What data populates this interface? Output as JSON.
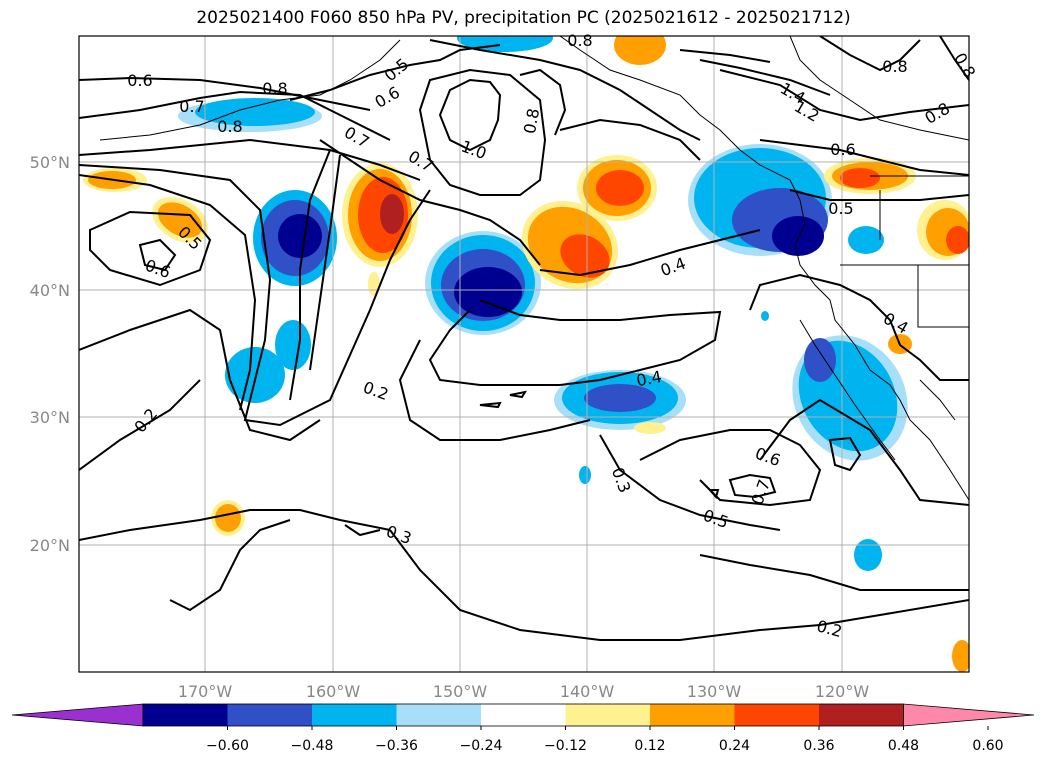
{
  "title": "2025021400 F060 850 hPa PV, precipitation PC (2025021612 - 2025021712)",
  "map": {
    "lon_labels": [
      "170°W",
      "160°W",
      "150°W",
      "140°W",
      "130°W",
      "120°W"
    ],
    "lat_labels": [
      "50°N",
      "40°N",
      "30°N",
      "20°N"
    ],
    "contour_labels": [
      "0.6",
      "0.8",
      "0.7",
      "0.8",
      "0.6",
      "0.7",
      "0.8",
      "1.0",
      "0.7",
      "0.5",
      "0.6",
      "0.4",
      "0.2",
      "0.4",
      "0.2",
      "0.3",
      "0.3",
      "0.6",
      "0.7",
      "0.5",
      "0.2",
      "0.5",
      "0.6",
      "0.8",
      "1.2",
      "1.4",
      "0.8",
      "0.4",
      "0.8",
      "0.5",
      "0.8"
    ]
  },
  "colorbar": {
    "ticks": [
      "−0.60",
      "−0.48",
      "−0.36",
      "−0.24",
      "−0.12",
      "0.12",
      "0.24",
      "0.36",
      "0.48",
      "0.60"
    ],
    "colors": [
      "#9b30d0",
      "#000090",
      "#3050c8",
      "#00b4f0",
      "#a8dff8",
      "#ffffff",
      "#fff090",
      "#ffa000",
      "#ff4600",
      "#b02020",
      "#ff88aa"
    ]
  }
}
